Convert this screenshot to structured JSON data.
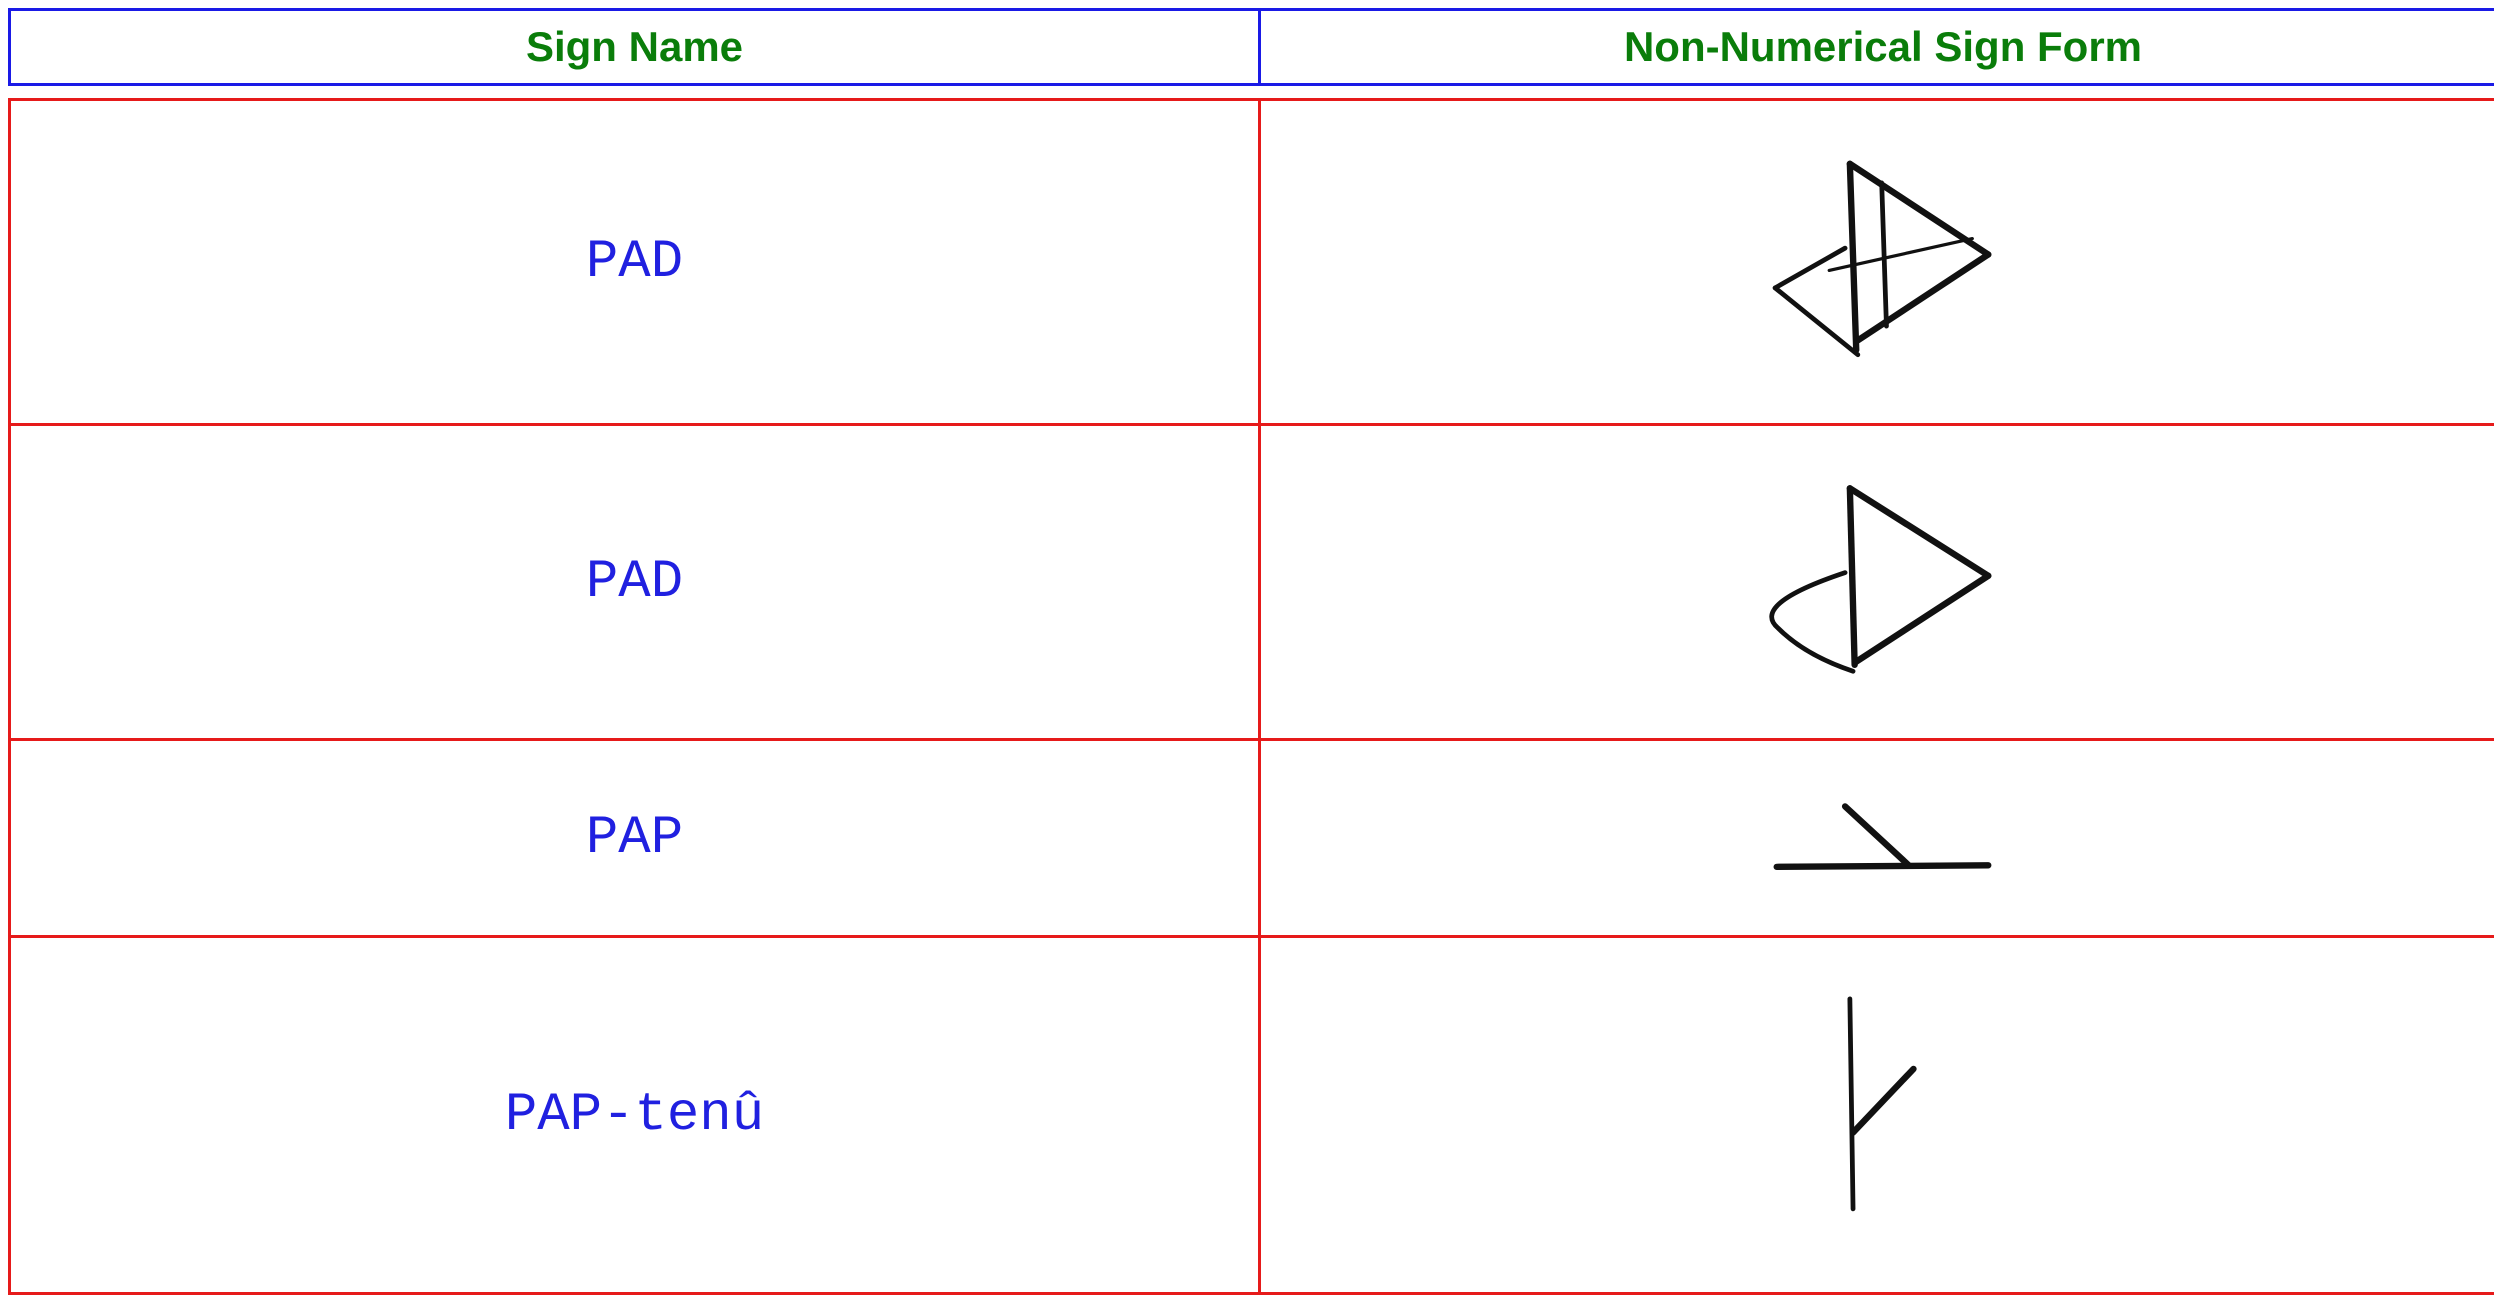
{
  "table": {
    "headers": [
      "Sign Name",
      "Non-Numerical Sign Form"
    ],
    "rows": [
      [
        "PAD"
      ],
      [
        "PAD"
      ],
      [
        "PAP"
      ],
      [
        "PAP-tenû"
      ]
    ]
  }
}
